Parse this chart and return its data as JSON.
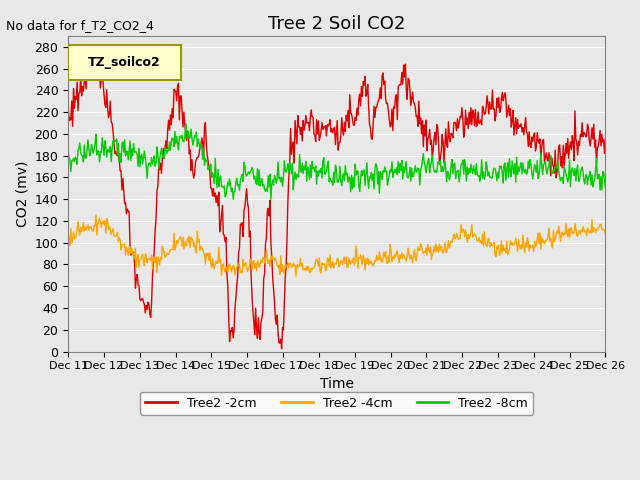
{
  "title": "Tree 2 Soil CO2",
  "subtitle": "No data for f_T2_CO2_4",
  "xlabel": "Time",
  "ylabel": "CO2 (mv)",
  "ylim": [
    0,
    290
  ],
  "yticks": [
    0,
    20,
    40,
    60,
    80,
    100,
    120,
    140,
    160,
    180,
    200,
    220,
    240,
    260,
    280
  ],
  "xtick_labels": [
    "Dec 11",
    "Dec 12",
    "Dec 13",
    "Dec 14",
    "Dec 15",
    "Dec 16",
    "Dec 17",
    "Dec 18",
    "Dec 19",
    "Dec 20",
    "Dec 21",
    "Dec 22",
    "Dec 23",
    "Dec 24",
    "Dec 25",
    "Dec 26"
  ],
  "legend_label": "TZ_soilco2",
  "bg_color": "#e8e8e8",
  "line_colors": {
    "red": "#dd0000",
    "orange": "#ffa500",
    "green": "#00cc00"
  },
  "legend_entries": [
    "Tree2 -2cm",
    "Tree2 -4cm",
    "Tree2 -8cm"
  ],
  "legend_colors": [
    "#dd0000",
    "#ffa500",
    "#00cc00"
  ],
  "n_days": 15,
  "n_per_day": 40
}
